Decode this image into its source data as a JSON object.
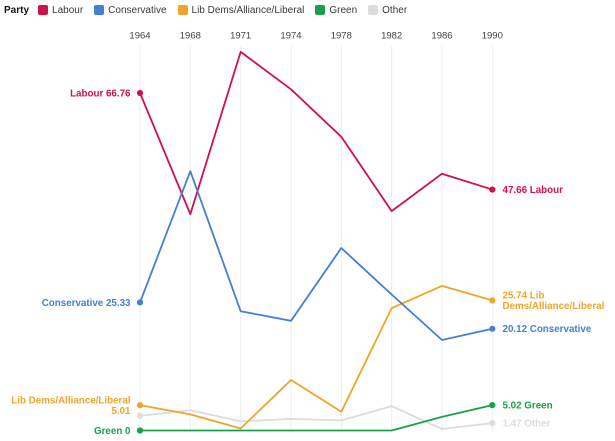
{
  "legend": {
    "title": "Party",
    "items": [
      {
        "label": "Labour",
        "color": "#d1114a"
      },
      {
        "label": "Conservative",
        "color": "#4480d2"
      },
      {
        "label": "Lib Dems/Alliance/Liberal",
        "color": "#f0a42a"
      },
      {
        "label": "Green",
        "color": "#18a14d"
      },
      {
        "label": "Other",
        "color": "#dcdcdc"
      }
    ]
  },
  "chart_data": {
    "type": "line",
    "x": [
      "1964",
      "1968",
      "1971",
      "1974",
      "1978",
      "1982",
      "1986",
      "1990"
    ],
    "x_axis_position": "top",
    "grid": "vertical-only",
    "legend_position": "top-left",
    "ylim": [
      0,
      76
    ],
    "series": [
      {
        "name": "Labour",
        "color": "#d1114a",
        "values": [
          66.76,
          42.8,
          74.9,
          67.5,
          58.1,
          43.4,
          50.8,
          47.66
        ],
        "start_label": "Labour 66.76",
        "end_label": "47.66 Labour"
      },
      {
        "name": "Conservative",
        "color": "#4480d2",
        "values": [
          25.33,
          51.3,
          23.6,
          21.7,
          36.1,
          26.9,
          17.9,
          20.12
        ],
        "start_label": "Conservative 25.33",
        "end_label": "20.12 Conservative"
      },
      {
        "name": "Lib Dems/Alliance/Liberal",
        "color": "#f0a42a",
        "values": [
          5.01,
          3.2,
          0.4,
          10.0,
          3.7,
          24.2,
          28.6,
          25.74
        ],
        "start_label": "Lib Dems/Alliance/Liberal\n5.01",
        "end_label": "25.74 Lib\nDems/Alliance/Liberal"
      },
      {
        "name": "Green",
        "color": "#18a14d",
        "values": [
          0,
          0,
          0,
          0,
          0,
          0,
          2.7,
          5.02
        ],
        "start_label": "Green 0",
        "end_label": "5.02 Green"
      },
      {
        "name": "Other",
        "color": "#dcdcdc",
        "values": [
          2.9,
          4.0,
          1.8,
          2.3,
          2.0,
          4.8,
          0.3,
          1.47
        ],
        "start_label": null,
        "end_label": "1.47 Other"
      }
    ],
    "draw_order": [
      "Other",
      "Green",
      "Lib Dems/Alliance/Liberal",
      "Labour",
      "Conservative"
    ],
    "axis_text_color": "#424242",
    "gridline_color": "#ececec"
  }
}
